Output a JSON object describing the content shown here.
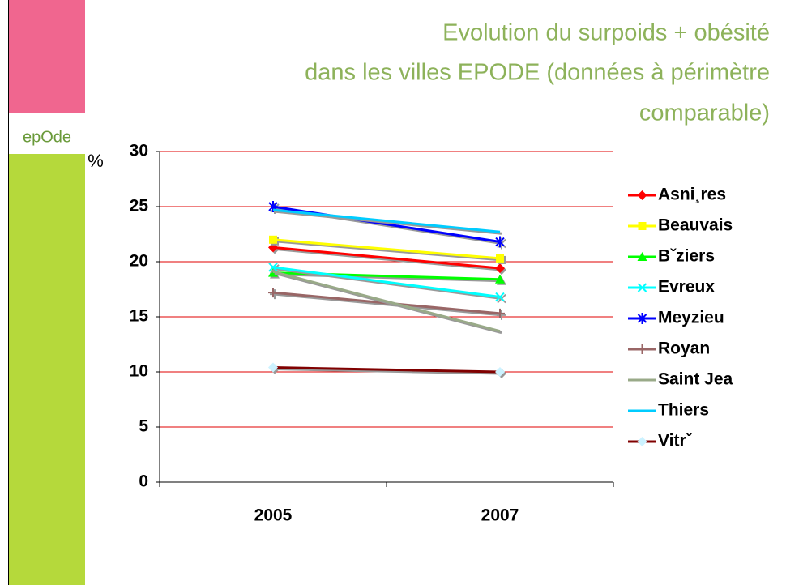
{
  "logo": "epOde",
  "chart_data": {
    "type": "line",
    "title": [
      "Evolution du surpoids + obésité",
      "dans les villes EPODE (données à périmètre",
      "comparable)"
    ],
    "y_label": "%",
    "categories": [
      "2005",
      "2007"
    ],
    "ylim": [
      0,
      30
    ],
    "yticks": [
      0,
      5,
      10,
      15,
      20,
      25,
      30
    ],
    "grid": true,
    "legend": "right",
    "series": [
      {
        "name": "Asni¸res",
        "color": "#ff0000",
        "marker": "diamond",
        "values": [
          21.3,
          19.4
        ]
      },
      {
        "name": "Beauvais",
        "color": "#ffff00",
        "marker": "square",
        "values": [
          22.0,
          20.3
        ]
      },
      {
        "name": "Bˇziers",
        "color": "#00ff00",
        "marker": "triangle",
        "values": [
          19.0,
          18.4
        ]
      },
      {
        "name": "Evreux",
        "color": "#00ffff",
        "marker": "x",
        "values": [
          19.5,
          16.8
        ]
      },
      {
        "name": "Meyzieu",
        "color": "#0000ff",
        "marker": "star",
        "values": [
          25.0,
          21.8
        ]
      },
      {
        "name": "Royan",
        "color": "#996666",
        "marker": "plus",
        "values": [
          17.2,
          15.3
        ]
      },
      {
        "name": "Saint Jea",
        "color": "#99aa88",
        "marker": "none",
        "values": [
          19.1,
          13.7
        ]
      },
      {
        "name": "Thiers",
        "color": "#00ccff",
        "marker": "none",
        "values": [
          24.7,
          22.7
        ]
      },
      {
        "name": "Vitrˇ",
        "color": "#800000",
        "marker": "diamond-light",
        "values": [
          10.4,
          10.0
        ]
      }
    ]
  }
}
